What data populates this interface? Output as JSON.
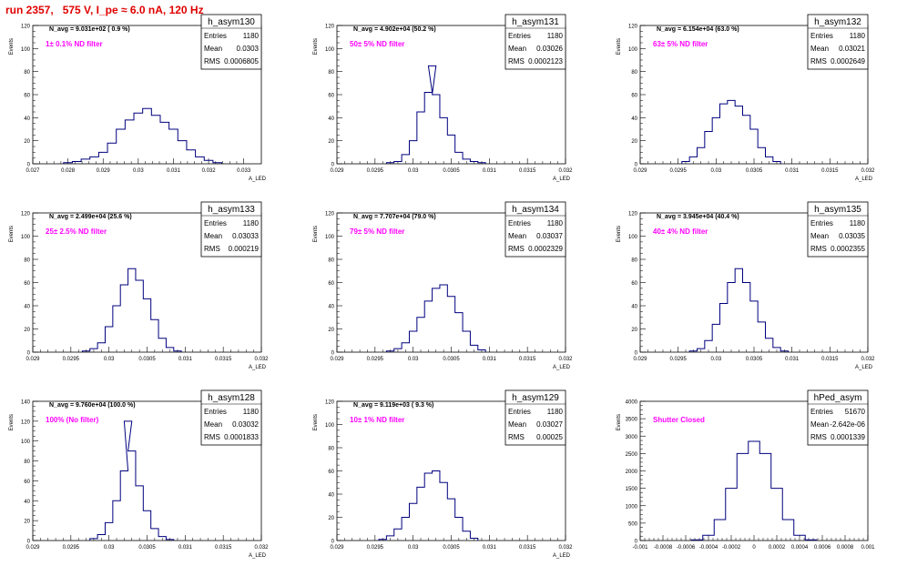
{
  "header": {
    "title": "run 2357,   575 V, I_pe ≈ 6.0 nA, 120 Hz"
  },
  "colors": {
    "hist": "#00007f",
    "annotation": "#ff00ff",
    "title": "#e00000",
    "axis": "#000000"
  },
  "chart_data": [
    {
      "type": "bar",
      "hist_name": "h_asym130",
      "navg": "N_avg = 9.031e+02 ( 0.9 %)",
      "filter_label": "1± 0.1% ND filter",
      "stats": [
        [
          "Entries",
          "1180"
        ],
        [
          "Mean",
          "0.0303"
        ],
        [
          "RMS",
          "0.0006805"
        ]
      ],
      "ylabel": "Events",
      "xlabel": "A_LED",
      "xlim": [
        0.027,
        0.0335
      ],
      "ylim": [
        0,
        120
      ],
      "xticks": [
        "0.027",
        "0.028",
        "0.029",
        "0.03",
        "0.031",
        "0.032",
        "0.033"
      ],
      "xtick_values": [
        0.027,
        0.028,
        0.029,
        0.03,
        0.031,
        0.032,
        0.033
      ],
      "yticks": [
        0,
        20,
        40,
        60,
        80,
        100,
        120
      ],
      "bins": [
        0.028,
        0.02825,
        0.0285,
        0.02875,
        0.029,
        0.02925,
        0.0295,
        0.02975,
        0.03,
        0.03025,
        0.0305,
        0.03075,
        0.031,
        0.03125,
        0.0315,
        0.03175,
        0.032,
        0.03225
      ],
      "values": [
        1,
        2,
        4,
        6,
        10,
        18,
        30,
        38,
        44,
        48,
        42,
        36,
        30,
        20,
        12,
        6,
        3,
        1
      ]
    },
    {
      "type": "bar",
      "hist_name": "h_asym131",
      "navg": "N_avg = 4.902e+04 (50.2 %)",
      "filter_label": "50± 5% ND filter",
      "stats": [
        [
          "Entries",
          "1180"
        ],
        [
          "Mean",
          "0.03026"
        ],
        [
          "RMS",
          "0.0002123"
        ]
      ],
      "ylabel": "Events",
      "xlabel": "A_LED",
      "xlim": [
        0.029,
        0.032
      ],
      "ylim": [
        0,
        120
      ],
      "xticks": [
        "0.029",
        "0.0295",
        "0.03",
        "0.0305",
        "0.031",
        "0.0315",
        "0.032"
      ],
      "xtick_values": [
        0.029,
        0.0295,
        0.03,
        0.0305,
        0.031,
        0.0315,
        0.032
      ],
      "yticks": [
        0,
        20,
        40,
        60,
        80,
        100,
        120
      ],
      "bins": [
        0.0297,
        0.0298,
        0.0299,
        0.03,
        0.0301,
        0.0302,
        0.03025,
        0.0303,
        0.0304,
        0.0305,
        0.0306,
        0.0307,
        0.0308,
        0.0309
      ],
      "values": [
        1,
        2,
        8,
        20,
        45,
        62,
        85,
        60,
        40,
        25,
        10,
        4,
        2,
        1
      ]
    },
    {
      "type": "bar",
      "hist_name": "h_asym132",
      "navg": "N_avg = 6.154e+04 (63.0 %)",
      "filter_label": "63± 5% ND filter",
      "stats": [
        [
          "Entries",
          "1180"
        ],
        [
          "Mean",
          "0.03021"
        ],
        [
          "RMS",
          "0.0002649"
        ]
      ],
      "ylabel": "Events",
      "xlabel": "A_LED",
      "xlim": [
        0.029,
        0.032
      ],
      "ylim": [
        0,
        120
      ],
      "xticks": [
        "0.029",
        "0.0295",
        "0.03",
        "0.0305",
        "0.031",
        "0.0315",
        "0.032"
      ],
      "xtick_values": [
        0.029,
        0.0295,
        0.03,
        0.0305,
        0.031,
        0.0315,
        0.032
      ],
      "yticks": [
        0,
        20,
        40,
        60,
        80,
        100,
        120
      ],
      "bins": [
        0.0296,
        0.0297,
        0.0298,
        0.0299,
        0.03,
        0.0301,
        0.0302,
        0.0303,
        0.0304,
        0.0305,
        0.0306,
        0.0307,
        0.0308
      ],
      "values": [
        2,
        6,
        14,
        28,
        40,
        52,
        55,
        50,
        42,
        30,
        14,
        6,
        2
      ]
    },
    {
      "type": "bar",
      "hist_name": "h_asym133",
      "navg": "N_avg = 2.499e+04 (25.6 %)",
      "filter_label": "25± 2.5% ND filter",
      "stats": [
        [
          "Entries",
          "1180"
        ],
        [
          "Mean",
          "0.03033"
        ],
        [
          "RMS",
          "0.000219"
        ]
      ],
      "ylabel": "Events",
      "xlabel": "A_LED",
      "xlim": [
        0.029,
        0.032
      ],
      "ylim": [
        0,
        120
      ],
      "xticks": [
        "0.029",
        "0.0295",
        "0.03",
        "0.0305",
        "0.031",
        "0.0315",
        "0.032"
      ],
      "xtick_values": [
        0.029,
        0.0295,
        0.03,
        0.0305,
        0.031,
        0.0315,
        0.032
      ],
      "yticks": [
        0,
        20,
        40,
        60,
        80,
        100,
        120
      ],
      "bins": [
        0.0297,
        0.0298,
        0.0299,
        0.03,
        0.0301,
        0.0302,
        0.0303,
        0.0304,
        0.0305,
        0.0306,
        0.0307,
        0.0308,
        0.0309
      ],
      "values": [
        1,
        3,
        8,
        22,
        40,
        58,
        72,
        62,
        46,
        28,
        12,
        4,
        1
      ]
    },
    {
      "type": "bar",
      "hist_name": "h_asym134",
      "navg": "N_avg = 7.707e+04 (79.0 %)",
      "filter_label": "79± 5% ND filter",
      "stats": [
        [
          "Entries",
          "1180"
        ],
        [
          "Mean",
          "0.03037"
        ],
        [
          "RMS",
          "0.0002329"
        ]
      ],
      "ylabel": "Events",
      "xlabel": "A_LED",
      "xlim": [
        0.029,
        0.032
      ],
      "ylim": [
        0,
        120
      ],
      "xticks": [
        "0.029",
        "0.0295",
        "0.03",
        "0.0305",
        "0.031",
        "0.0315",
        "0.032"
      ],
      "xtick_values": [
        0.029,
        0.0295,
        0.03,
        0.0305,
        0.031,
        0.0315,
        0.032
      ],
      "yticks": [
        0,
        20,
        40,
        60,
        80,
        100,
        120
      ],
      "bins": [
        0.0297,
        0.0298,
        0.0299,
        0.03,
        0.0301,
        0.0302,
        0.0303,
        0.0304,
        0.0305,
        0.0306,
        0.0307,
        0.0308,
        0.0309
      ],
      "values": [
        1,
        3,
        8,
        18,
        30,
        44,
        55,
        58,
        48,
        34,
        18,
        6,
        2
      ]
    },
    {
      "type": "bar",
      "hist_name": "h_asym135",
      "navg": "N_avg = 3.945e+04 (40.4 %)",
      "filter_label": "40± 4% ND filter",
      "stats": [
        [
          "Entries",
          "1180"
        ],
        [
          "Mean",
          "0.03035"
        ],
        [
          "RMS",
          "0.0002355"
        ]
      ],
      "ylabel": "Events",
      "xlabel": "A_LED",
      "xlim": [
        0.029,
        0.032
      ],
      "ylim": [
        0,
        120
      ],
      "xticks": [
        "0.029",
        "0.0295",
        "0.03",
        "0.0305",
        "0.031",
        "0.0315",
        "0.032"
      ],
      "xtick_values": [
        0.029,
        0.0295,
        0.03,
        0.0305,
        0.031,
        0.0315,
        0.032
      ],
      "yticks": [
        0,
        20,
        40,
        60,
        80,
        100,
        120
      ],
      "bins": [
        0.0297,
        0.0298,
        0.0299,
        0.03,
        0.0301,
        0.0302,
        0.0303,
        0.0304,
        0.0305,
        0.0306,
        0.0307,
        0.0308,
        0.0309
      ],
      "values": [
        1,
        3,
        10,
        24,
        42,
        60,
        72,
        60,
        44,
        26,
        12,
        4,
        1
      ]
    },
    {
      "type": "bar",
      "hist_name": "h_asym128",
      "navg": "N_avg = 9.760e+04 (100.0 %)",
      "filter_label": "100% (No filter)",
      "stats": [
        [
          "Entries",
          "1180"
        ],
        [
          "Mean",
          "0.03032"
        ],
        [
          "RMS",
          "0.0001833"
        ]
      ],
      "ylabel": "Events",
      "xlabel": "A_LED",
      "xlim": [
        0.029,
        0.032
      ],
      "ylim": [
        0,
        140
      ],
      "xticks": [
        "0.029",
        "0.0295",
        "0.03",
        "0.0305",
        "0.031",
        "0.0315",
        "0.032"
      ],
      "xtick_values": [
        0.029,
        0.0295,
        0.03,
        0.0305,
        0.031,
        0.0315,
        0.032
      ],
      "yticks": [
        0,
        20,
        40,
        60,
        80,
        100,
        120,
        140
      ],
      "bins": [
        0.0298,
        0.0299,
        0.03,
        0.0301,
        0.0302,
        0.03025,
        0.0303,
        0.0304,
        0.0305,
        0.0306,
        0.0307,
        0.0308
      ],
      "values": [
        2,
        6,
        18,
        40,
        70,
        120,
        90,
        55,
        30,
        12,
        4,
        1
      ]
    },
    {
      "type": "bar",
      "hist_name": "h_asym129",
      "navg": "N_avg = 9.119e+03 ( 9.3 %)",
      "filter_label": "10± 1% ND filter",
      "stats": [
        [
          "Entries",
          "1180"
        ],
        [
          "Mean",
          "0.03027"
        ],
        [
          "RMS",
          "0.00025"
        ]
      ],
      "ylabel": "Events",
      "xlabel": "A_LED",
      "xlim": [
        0.029,
        0.032
      ],
      "ylim": [
        0,
        120
      ],
      "xticks": [
        "0.029",
        "0.0295",
        "0.03",
        "0.0305",
        "0.031",
        "0.0315",
        "0.032"
      ],
      "xtick_values": [
        0.029,
        0.0295,
        0.03,
        0.0305,
        0.031,
        0.0315,
        0.032
      ],
      "yticks": [
        0,
        20,
        40,
        60,
        80,
        100,
        120
      ],
      "bins": [
        0.0296,
        0.0297,
        0.0298,
        0.0299,
        0.03,
        0.0301,
        0.0302,
        0.0303,
        0.0304,
        0.0305,
        0.0306,
        0.0307,
        0.0308
      ],
      "values": [
        1,
        4,
        10,
        20,
        32,
        46,
        58,
        60,
        50,
        36,
        20,
        8,
        2
      ]
    },
    {
      "type": "bar",
      "hist_name": "hPed_asym",
      "navg": "",
      "filter_label": "Shutter Closed",
      "stats": [
        [
          "Entries",
          "51670"
        ],
        [
          "Mean",
          "-2.642e-06"
        ],
        [
          "RMS",
          "0.0001339"
        ]
      ],
      "ylabel": "Events",
      "xlabel": "",
      "xlim": [
        -0.001,
        0.001
      ],
      "ylim": [
        0,
        4000
      ],
      "xticks": [
        "-0.001",
        "-0.0008",
        "-0.0006",
        "-0.0004",
        "-0.0002",
        "0",
        "0.0002",
        "0.0004",
        "0.0006",
        "0.0008",
        "0.001"
      ],
      "xtick_values": [
        -0.001,
        -0.0008,
        -0.0006,
        -0.0004,
        -0.0002,
        0,
        0.0002,
        0.0004,
        0.0006,
        0.0008,
        0.001
      ],
      "yticks": [
        0,
        500,
        1000,
        1500,
        2000,
        2500,
        3000,
        3500,
        4000
      ],
      "bins": [
        -0.0005,
        -0.0004,
        -0.0003,
        -0.0002,
        -0.0001,
        0.0,
        0.0001,
        0.0002,
        0.0003,
        0.0004,
        0.0005
      ],
      "values": [
        20,
        150,
        600,
        1500,
        2500,
        2850,
        2500,
        1500,
        600,
        150,
        20
      ]
    }
  ]
}
